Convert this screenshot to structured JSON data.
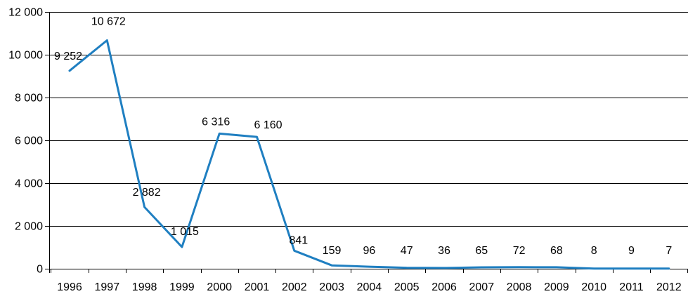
{
  "chart_data": {
    "type": "line",
    "title": "",
    "xlabel": "",
    "ylabel": "",
    "ylim": [
      0,
      12000
    ],
    "yticks": [
      "0",
      "2 000",
      "4 000",
      "6 000",
      "8 000",
      "10 000",
      "12 000"
    ],
    "ytick_values": [
      0,
      2000,
      4000,
      6000,
      8000,
      10000,
      12000
    ],
    "categories": [
      "1996",
      "1997",
      "1998",
      "1999",
      "2000",
      "2001",
      "2002",
      "2003",
      "2004",
      "2005",
      "2006",
      "2007",
      "2008",
      "2009",
      "2010",
      "2011",
      "2012"
    ],
    "grid": true,
    "legend": "none",
    "series": [
      {
        "color": "#1f7fc1",
        "values": [
          9252,
          10672,
          2882,
          1015,
          6316,
          6160,
          841,
          159,
          96,
          47,
          36,
          65,
          72,
          68,
          8,
          9,
          7
        ],
        "labels": [
          "9 252",
          "10 672",
          "2 882",
          "1 015",
          "6 316",
          "6 160",
          "841",
          "159",
          "96",
          "47",
          "36",
          "65",
          "72",
          "68",
          "8",
          "9",
          "7"
        ]
      }
    ]
  }
}
